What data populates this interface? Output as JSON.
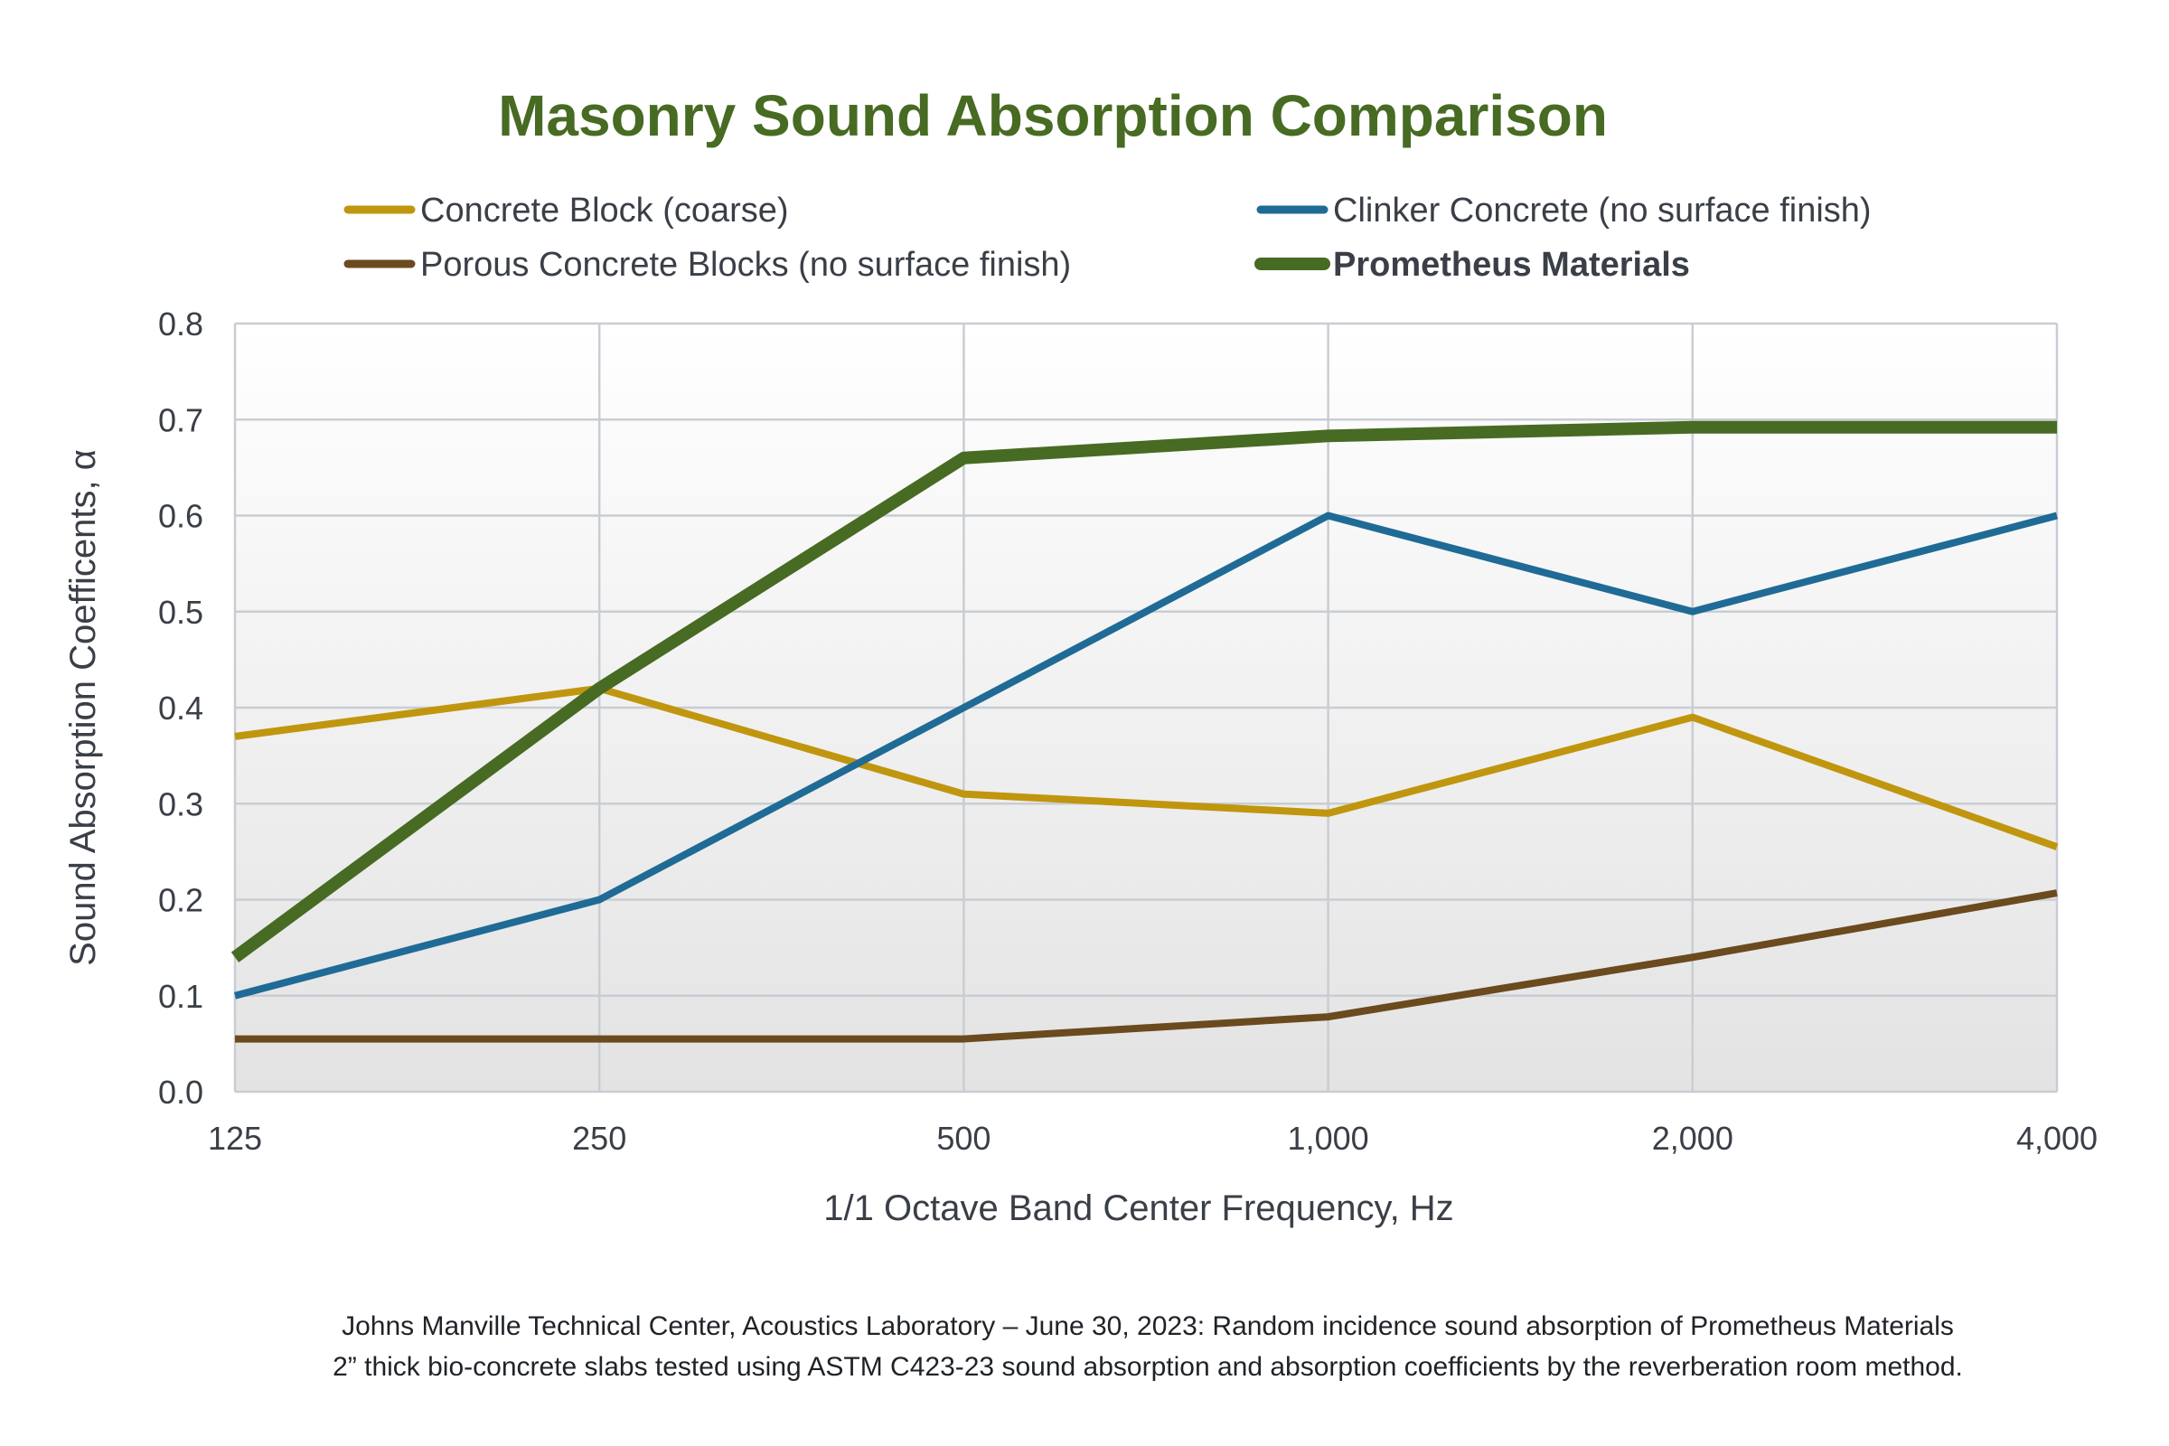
{
  "chart_data": {
    "type": "line",
    "title": "Masonry Sound Absorption Comparison",
    "xlabel": "1/1 Octave Band Center Frequency, Hz",
    "ylabel": "Sound Absorption Coefficents, α",
    "categories": [
      "125",
      "250",
      "500",
      "1,000",
      "2,000",
      "4,000"
    ],
    "yticks": [
      "0.0",
      "0.1",
      "0.2",
      "0.3",
      "0.4",
      "0.5",
      "0.6",
      "0.7",
      "0.8"
    ],
    "ylim": [
      0,
      0.8
    ],
    "grid": true,
    "legend_position": "top",
    "series": [
      {
        "name": "Concrete Block (coarse)",
        "color": "#c0960f",
        "values": [
          0.37,
          0.42,
          0.31,
          0.29,
          0.39,
          0.255
        ],
        "bold": false
      },
      {
        "name": "Clinker Concrete (no surface finish)",
        "color": "#1f6b96",
        "values": [
          0.1,
          0.2,
          0.4,
          0.6,
          0.5,
          0.6
        ],
        "bold": false
      },
      {
        "name": "Porous Concrete Blocks (no surface finish)",
        "color": "#6b4a1e",
        "values": [
          0.055,
          0.055,
          0.055,
          0.078,
          0.14,
          0.207
        ],
        "bold": false
      },
      {
        "name": "Prometheus Materials",
        "color": "#476b22",
        "values": [
          0.14,
          0.42,
          0.66,
          0.683,
          0.692,
          0.692
        ],
        "bold": true
      }
    ],
    "caption": [
      "Johns Manville Technical Center, Acoustics Laboratory – June 30, 2023: Random incidence sound absorption of Prometheus Materials",
      "2” thick bio-concrete slabs tested using ASTM C423-23 sound absorption and absorption coefficients by the reverberation room method."
    ],
    "title_color": "#476b22"
  }
}
